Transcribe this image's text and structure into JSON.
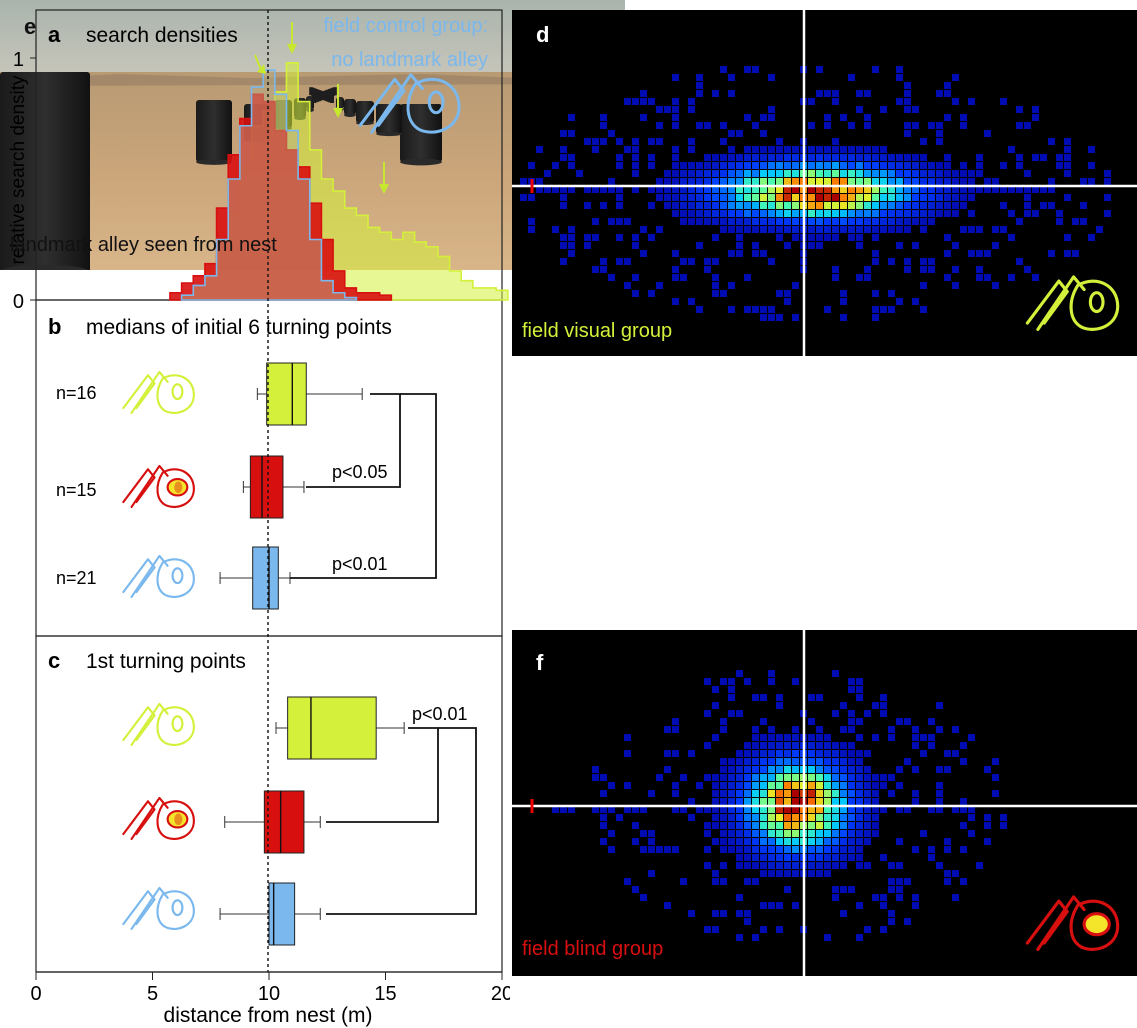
{
  "panel_a": {
    "letter": "a",
    "title": "search densities",
    "legend_text": [
      "field control group:",
      "no landmark alley"
    ],
    "ylabel": "relative search density",
    "yticks": [
      "0",
      "1"
    ]
  },
  "panel_b": {
    "letter": "b",
    "title": "medians of initial 6 turning points",
    "groups": [
      {
        "n_label": "n=16",
        "color": "#d4f03a"
      },
      {
        "n_label": "n=15",
        "color": "#d80f0f"
      },
      {
        "n_label": "n=21",
        "color": "#7ab8ee"
      }
    ],
    "p_values": [
      "p<0.05",
      "p<0.01"
    ]
  },
  "panel_c": {
    "letter": "c",
    "title": "1st turning points",
    "p_values": [
      "p<0.01"
    ]
  },
  "x_axis": {
    "label": "distance from nest (m)",
    "ticks": [
      "0",
      "5",
      "10",
      "15",
      "20"
    ]
  },
  "panel_d": {
    "letter": "d",
    "caption": "field visual group",
    "caption_color": "#d4f03a"
  },
  "panel_e": {
    "letter": "e",
    "caption": "landmark alley seen from nest"
  },
  "panel_f": {
    "letter": "f",
    "caption": "field blind group",
    "caption_color": "#d80f0f"
  },
  "chart_data": [
    {
      "type": "area",
      "title": "search densities",
      "ylabel": "relative search density",
      "xlabel": "distance from nest (m)",
      "xlim": [
        0,
        20
      ],
      "ylim": [
        0,
        1
      ],
      "series": [
        {
          "color": "#d4f03a",
          "x": [
            6.5,
            7,
            7.5,
            8,
            8.5,
            9,
            9.5,
            10,
            10.5,
            11,
            11.5,
            12,
            12.5,
            13,
            13.5,
            14,
            14.5,
            15,
            15.5,
            16,
            16.5,
            17,
            17.5,
            18,
            18.5,
            19,
            19.5,
            20
          ],
          "values": [
            0.02,
            0.05,
            0.12,
            0.2,
            0.35,
            0.55,
            0.72,
            0.78,
            0.86,
            0.98,
            0.82,
            0.62,
            0.5,
            0.45,
            0.38,
            0.35,
            0.3,
            0.28,
            0.25,
            0.28,
            0.24,
            0.22,
            0.18,
            0.12,
            0.08,
            0.05,
            0.05,
            0.04
          ]
        },
        {
          "color": "#d80f0f",
          "x": [
            6,
            6.5,
            7,
            7.5,
            8,
            8.5,
            9,
            9.5,
            10,
            10.5,
            11,
            11.5,
            12,
            12.5,
            13,
            13.5,
            14,
            14.5,
            15
          ],
          "values": [
            0.03,
            0.07,
            0.1,
            0.15,
            0.38,
            0.6,
            0.75,
            0.85,
            0.82,
            0.7,
            0.62,
            0.55,
            0.4,
            0.25,
            0.12,
            0.05,
            0.03,
            0.03,
            0.02
          ]
        },
        {
          "color": "#7ab8ee",
          "x": [
            6.5,
            7,
            7.5,
            8,
            8.5,
            9,
            9.5,
            10,
            10.5,
            11,
            11.5,
            12,
            12.5,
            13,
            13.5
          ],
          "values": [
            0.02,
            0.06,
            0.1,
            0.25,
            0.5,
            0.72,
            0.88,
            0.95,
            0.85,
            0.7,
            0.5,
            0.25,
            0.08,
            0.03,
            0.01
          ]
        }
      ]
    },
    {
      "type": "box",
      "title": "medians of initial 6 turning points",
      "xlabel": "distance from nest (m)",
      "xlim": [
        0,
        20
      ],
      "groups": [
        {
          "label": "n=16",
          "color": "#d4f03a",
          "whisker_low": 9.5,
          "q1": 9.9,
          "median": 11.0,
          "q3": 11.6,
          "whisker_high": 14.0
        },
        {
          "label": "n=15",
          "color": "#d80f0f",
          "whisker_low": 8.9,
          "q1": 9.2,
          "median": 9.7,
          "q3": 10.6,
          "whisker_high": 11.5
        },
        {
          "label": "n=21",
          "color": "#7ab8ee",
          "whisker_low": 7.9,
          "q1": 9.3,
          "median": 10.0,
          "q3": 10.4,
          "whisker_high": 10.9
        }
      ]
    },
    {
      "type": "box",
      "title": "1st turning points",
      "xlabel": "distance from nest (m)",
      "xlim": [
        0,
        20
      ],
      "groups": [
        {
          "color": "#d4f03a",
          "whisker_low": 10.3,
          "q1": 10.8,
          "median": 11.8,
          "q3": 14.6,
          "whisker_high": 15.8
        },
        {
          "color": "#d80f0f",
          "whisker_low": 8.1,
          "q1": 9.8,
          "median": 10.5,
          "q3": 11.5,
          "whisker_high": 12.2
        },
        {
          "color": "#7ab8ee",
          "whisker_low": 7.9,
          "q1": 10.0,
          "median": 10.2,
          "q3": 11.1,
          "whisker_high": 12.2
        }
      ]
    }
  ]
}
